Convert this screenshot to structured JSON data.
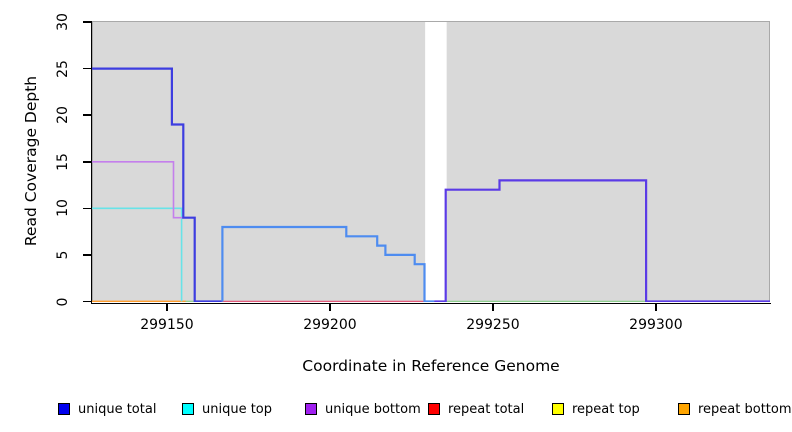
{
  "chart_data": {
    "type": "line",
    "title": "",
    "xlabel": "Coordinate in Reference Genome",
    "ylabel": "Read Coverage Depth",
    "xlim": [
      299127,
      299335
    ],
    "ylim": [
      0,
      30
    ],
    "x_ticks": [
      {
        "value": 299150,
        "label": "299150"
      },
      {
        "value": 299200,
        "label": "299200"
      },
      {
        "value": 299250,
        "label": "299250"
      },
      {
        "value": 299300,
        "label": "299300"
      }
    ],
    "y_ticks": [
      {
        "value": 0,
        "label": "0"
      },
      {
        "value": 5,
        "label": "5"
      },
      {
        "value": 10,
        "label": "10"
      },
      {
        "value": 15,
        "label": "15"
      },
      {
        "value": 20,
        "label": "20"
      },
      {
        "value": 25,
        "label": "25"
      },
      {
        "value": 30,
        "label": "30"
      }
    ],
    "panel_background": "#d9d9d9",
    "panel_border": "#a9a9a9",
    "gap_band": {
      "x_start": 299229.2,
      "x_end": 299235.8,
      "color": "#ffffff"
    },
    "series": [
      {
        "name": "unique total",
        "color": "#0000ee",
        "points": [
          [
            299127,
            25
          ],
          [
            299151.5,
            25
          ],
          [
            299151.5,
            19
          ],
          [
            299155,
            19
          ],
          [
            299155,
            9
          ],
          [
            299158.5,
            9
          ],
          [
            299158.5,
            0
          ],
          [
            299167,
            0
          ],
          [
            299167,
            8
          ],
          [
            299205,
            8
          ],
          [
            299205,
            7
          ],
          [
            299214.5,
            7
          ],
          [
            299214.5,
            6
          ],
          [
            299217,
            6
          ],
          [
            299217,
            5
          ],
          [
            299226,
            5
          ],
          [
            299226,
            4
          ],
          [
            299229,
            4
          ],
          [
            299229,
            0
          ],
          [
            299235.5,
            0
          ],
          [
            299235.5,
            12
          ],
          [
            299252,
            12
          ],
          [
            299252,
            13
          ],
          [
            299297,
            13
          ],
          [
            299297,
            0
          ],
          [
            299335,
            0
          ]
        ]
      },
      {
        "name": "unique top",
        "color": "#00ffff",
        "points": [
          [
            299127,
            10
          ],
          [
            299154.5,
            10
          ],
          [
            299154.5,
            0
          ],
          [
            299167,
            0
          ],
          [
            299167,
            8
          ],
          [
            299205,
            8
          ],
          [
            299205,
            7
          ],
          [
            299214.5,
            7
          ],
          [
            299214.5,
            6
          ],
          [
            299217,
            6
          ],
          [
            299217,
            5
          ],
          [
            299226,
            5
          ],
          [
            299226,
            4
          ],
          [
            299229,
            4
          ],
          [
            299229,
            0
          ],
          [
            299335,
            0
          ]
        ]
      },
      {
        "name": "unique bottom",
        "color": "#a020f0",
        "points": [
          [
            299127,
            15
          ],
          [
            299152,
            15
          ],
          [
            299152,
            9
          ],
          [
            299158.5,
            9
          ],
          [
            299158.5,
            0
          ],
          [
            299235.5,
            0
          ],
          [
            299235.5,
            12
          ],
          [
            299252,
            12
          ],
          [
            299252,
            13
          ],
          [
            299297,
            13
          ],
          [
            299297,
            0
          ],
          [
            299335,
            0
          ]
        ]
      },
      {
        "name": "repeat total",
        "color": "#ff0000",
        "points": [
          [
            299127,
            0
          ],
          [
            299335,
            0
          ]
        ]
      },
      {
        "name": "repeat top",
        "color": "#ffff00",
        "points": [
          [
            299127,
            0
          ],
          [
            299335,
            0
          ]
        ]
      },
      {
        "name": "repeat bottom",
        "color": "#ffa500",
        "points": [
          [
            299127,
            0
          ],
          [
            299335,
            0
          ]
        ]
      }
    ],
    "render_lines": [
      {
        "name": "green-zero-right",
        "color": "#8fce8f",
        "width": 1.6,
        "pts": [
          [
            299235.8,
            0
          ],
          [
            299297,
            0
          ]
        ]
      },
      {
        "name": "green-zero-left",
        "color": "#8fce8f",
        "width": 1.6,
        "pts": [
          [
            299155.5,
            0
          ],
          [
            299159,
            0
          ]
        ]
      },
      {
        "name": "red-zero",
        "color": "#e2597a",
        "width": 1.6,
        "pts": [
          [
            299167,
            0
          ],
          [
            299229,
            0
          ]
        ]
      },
      {
        "name": "orange-zero",
        "color": "#ff9d2e",
        "width": 1.8,
        "pts": [
          [
            299127,
            0
          ],
          [
            299155.7,
            0
          ]
        ]
      },
      {
        "name": "cyan-line",
        "color": "#68e3e8",
        "width": 1.6,
        "pts": [
          [
            299127,
            10
          ],
          [
            299154.5,
            10
          ],
          [
            299154.5,
            0
          ]
        ]
      },
      {
        "name": "purple-line",
        "color": "#c47fec",
        "width": 1.6,
        "pts": [
          [
            299127,
            15
          ],
          [
            299152,
            15
          ],
          [
            299152,
            9
          ],
          [
            299158.5,
            9
          ]
        ]
      },
      {
        "name": "blue-main",
        "color": "#3d3de0",
        "width": 2.2,
        "pts": [
          [
            299127,
            25
          ],
          [
            299151.5,
            25
          ],
          [
            299151.5,
            19
          ],
          [
            299155,
            19
          ],
          [
            299155,
            9
          ],
          [
            299158.5,
            9
          ],
          [
            299158.5,
            0
          ],
          [
            299167,
            0
          ]
        ]
      },
      {
        "name": "lightblue-mid",
        "color": "#4e8cf0",
        "width": 2.2,
        "pts": [
          [
            299167,
            0
          ],
          [
            299167,
            8
          ],
          [
            299205,
            8
          ],
          [
            299205,
            7
          ],
          [
            299214.5,
            7
          ],
          [
            299214.5,
            6
          ],
          [
            299217,
            6
          ],
          [
            299217,
            5
          ],
          [
            299226,
            5
          ],
          [
            299226,
            4
          ],
          [
            299229,
            4
          ],
          [
            299229,
            0
          ],
          [
            299232,
            0
          ]
        ]
      },
      {
        "name": "violet-right",
        "color": "#5b3be6",
        "width": 2.2,
        "pts": [
          [
            299232,
            0
          ],
          [
            299235.5,
            0
          ],
          [
            299235.5,
            12
          ],
          [
            299252,
            12
          ],
          [
            299252,
            13
          ],
          [
            299297,
            13
          ],
          [
            299297,
            0
          ],
          [
            299335,
            0
          ]
        ]
      }
    ],
    "legend": {
      "position": "bottom",
      "items": [
        {
          "label": "unique total",
          "color": "#0000ee"
        },
        {
          "label": "unique top",
          "color": "#00ffff"
        },
        {
          "label": "unique bottom",
          "color": "#a020f0"
        },
        {
          "label": "repeat total",
          "color": "#ff0000"
        },
        {
          "label": "repeat top",
          "color": "#ffff00"
        },
        {
          "label": "repeat bottom",
          "color": "#ffa500"
        }
      ]
    }
  }
}
